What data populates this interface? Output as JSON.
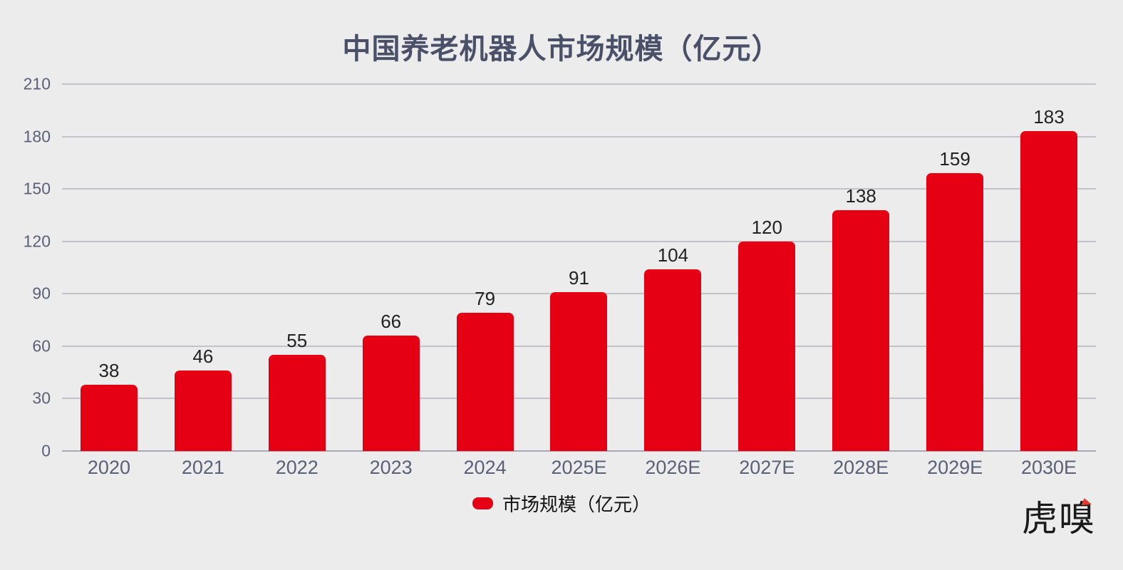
{
  "title": "中国养老机器人市场规模（亿元）",
  "legend": {
    "label": "市场规模（亿元）",
    "swatch_color": "#E60013"
  },
  "logo": {
    "text": "虎嗅"
  },
  "colors": {
    "background": "#ECECEC",
    "bar": "#E60013",
    "gridline": "#C2C2CB",
    "baseline": "#A8A8B2",
    "axis_text": "#5A6078",
    "title_text": "#4A5068",
    "value_text": "#222222"
  },
  "chart_data": {
    "type": "bar",
    "title": "中国养老机器人市场规模（亿元）",
    "categories": [
      "2020",
      "2021",
      "2022",
      "2023",
      "2024",
      "2025E",
      "2026E",
      "2027E",
      "2028E",
      "2029E",
      "2030E"
    ],
    "values": [
      38,
      46,
      55,
      66,
      79,
      91,
      104,
      120,
      138,
      159,
      183
    ],
    "series": [
      {
        "name": "市场规模（亿元）",
        "values": [
          38,
          46,
          55,
          66,
          79,
          91,
          104,
          120,
          138,
          159,
          183
        ]
      }
    ],
    "xlabel": "",
    "ylabel": "",
    "ylim": [
      0,
      210
    ],
    "yticks": [
      0,
      30,
      60,
      90,
      120,
      150,
      180,
      210
    ],
    "grid": true,
    "value_labels": true,
    "legend_position": "bottom",
    "bar_color": "#E60013"
  }
}
